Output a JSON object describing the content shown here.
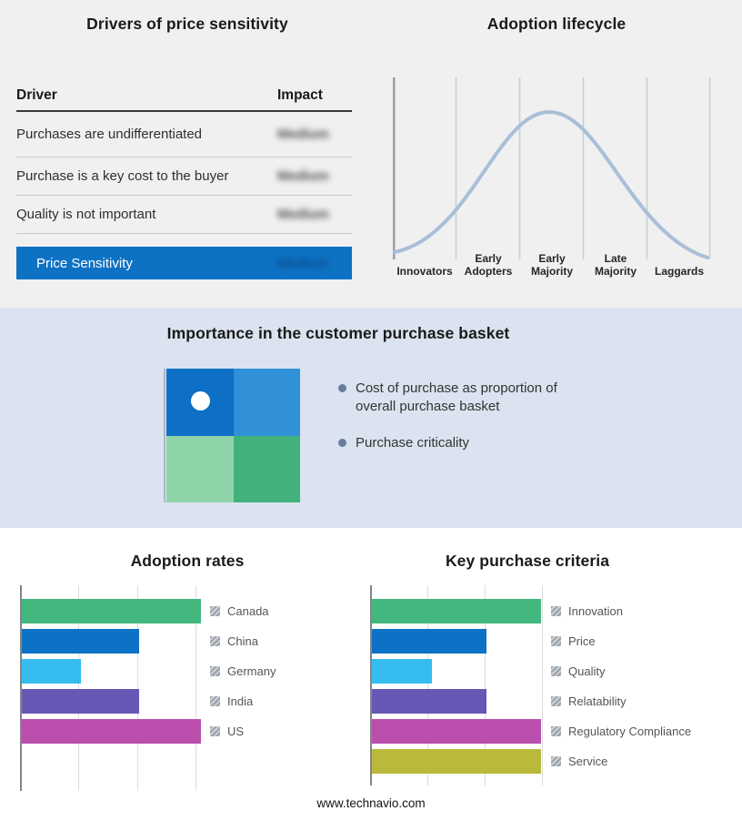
{
  "drivers_panel": {
    "title": "Drivers of price sensitivity",
    "header": {
      "driver": "Driver",
      "impact": "Impact"
    },
    "rows": [
      {
        "driver": "Purchases are undifferentiated",
        "impact": "Medium"
      },
      {
        "driver": "Purchase is a key cost to the buyer",
        "impact": "Medium"
      },
      {
        "driver": "Quality is not important",
        "impact": "Medium"
      }
    ],
    "summary": {
      "label": "Price Sensitivity",
      "impact": "Medium"
    },
    "summary_color": "#0e72c4"
  },
  "lifecycle_panel": {
    "title": "Adoption lifecycle",
    "stages": [
      "Innovators",
      "Early Adopters",
      "Early Majority",
      "Late Majority",
      "Laggards"
    ],
    "curve_color": "#a9bed7"
  },
  "basket_panel": {
    "title": "Importance in the customer purchase basket",
    "bullets": [
      "Cost of purchase as proportion of overall purchase basket",
      "Purchase criticality"
    ],
    "quad_colors": {
      "top_left": "#0d6fc5",
      "top_right": "#3090d8",
      "bottom_left": "#8fd3a9",
      "bottom_right": "#43b17c"
    },
    "band_color": "#dae3ef"
  },
  "footer": {
    "url": "www.technavio.com"
  },
  "chart_data": [
    {
      "type": "line",
      "title": "Adoption lifecycle",
      "x": [
        "Innovators",
        "Early Adopters",
        "Early Majority",
        "Late Majority",
        "Laggards"
      ],
      "shape": "bell curve (normal distribution), rising from near zero at Innovators, peaking over Early Majority, falling to near zero at Laggards",
      "peak_stage": "Early Majority",
      "grid": true,
      "curve_color": "#a9bed7",
      "axis_labels_shown": false
    },
    {
      "type": "bar",
      "title": "Adoption rates",
      "orientation": "horizontal",
      "categories": [
        "Canada",
        "China",
        "Germany",
        "India",
        "US"
      ],
      "values": [
        3.05,
        2,
        1,
        2,
        3.05
      ],
      "units": "relative (no numeric axis labels shown)",
      "xlim": [
        0,
        3.6
      ],
      "gridlines": [
        1,
        2,
        3
      ],
      "grid": true,
      "legend": "right",
      "colors": [
        "#44b77e",
        "#0d71c5",
        "#35bdf0",
        "#6658b5",
        "#bb4fae"
      ]
    },
    {
      "type": "bar",
      "title": "Key purchase criteria",
      "orientation": "horizontal",
      "categories": [
        "Innovation",
        "Price",
        "Quality",
        "Relatability",
        "Regulatory Compliance",
        "Service"
      ],
      "values": [
        2.95,
        2,
        1.05,
        2,
        2.95,
        2.95
      ],
      "units": "relative (no numeric axis labels shown)",
      "xlim": [
        0,
        3.2
      ],
      "gridlines": [
        1,
        2,
        3
      ],
      "grid": true,
      "legend": "right",
      "colors": [
        "#44b77e",
        "#0d71c5",
        "#35bdf0",
        "#6658b5",
        "#bb4fae",
        "#b9ba3c"
      ]
    }
  ]
}
